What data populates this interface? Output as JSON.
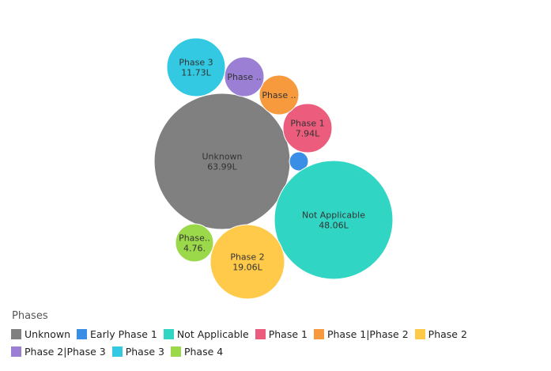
{
  "chart_data": {
    "type": "bubble",
    "legend_title": "Phases",
    "legend_position": "bottom-left",
    "series": [
      {
        "name": "Unknown",
        "value": 63.99,
        "label_line1": "Unknown",
        "label_line2": "63.99L",
        "color": "#808080"
      },
      {
        "name": "Early Phase 1",
        "value": 1,
        "label_line1": "",
        "label_line2": "",
        "color": "#3a8ee6"
      },
      {
        "name": "Not Applicable",
        "value": 48.06,
        "label_line1": "Not Applicable",
        "label_line2": "48.06L",
        "color": "#31d5c3"
      },
      {
        "name": "Phase 1",
        "value": 7.94,
        "label_line1": "Phase 1",
        "label_line2": "7.94L",
        "color": "#eb5c7d"
      },
      {
        "name": "Phase 1|Phase 2",
        "value": 5.5,
        "label_line1": "Phase ..",
        "label_line2": "",
        "color": "#f79a3e"
      },
      {
        "name": "Phase 2",
        "value": 19.06,
        "label_line1": "Phase 2",
        "label_line2": "19.06L",
        "color": "#ffc94a"
      },
      {
        "name": "Phase 2|Phase 3",
        "value": 5.0,
        "label_line1": "Phase ..",
        "label_line2": "",
        "color": "#9b7fd4"
      },
      {
        "name": "Phase 3",
        "value": 11.73,
        "label_line1": "Phase 3",
        "label_line2": "11.73L",
        "color": "#33c9e3"
      },
      {
        "name": "Phase 4",
        "value": 4.76,
        "label_line1": "Phase..",
        "label_line2": "4.76.",
        "color": "#9bd94a"
      }
    ]
  }
}
